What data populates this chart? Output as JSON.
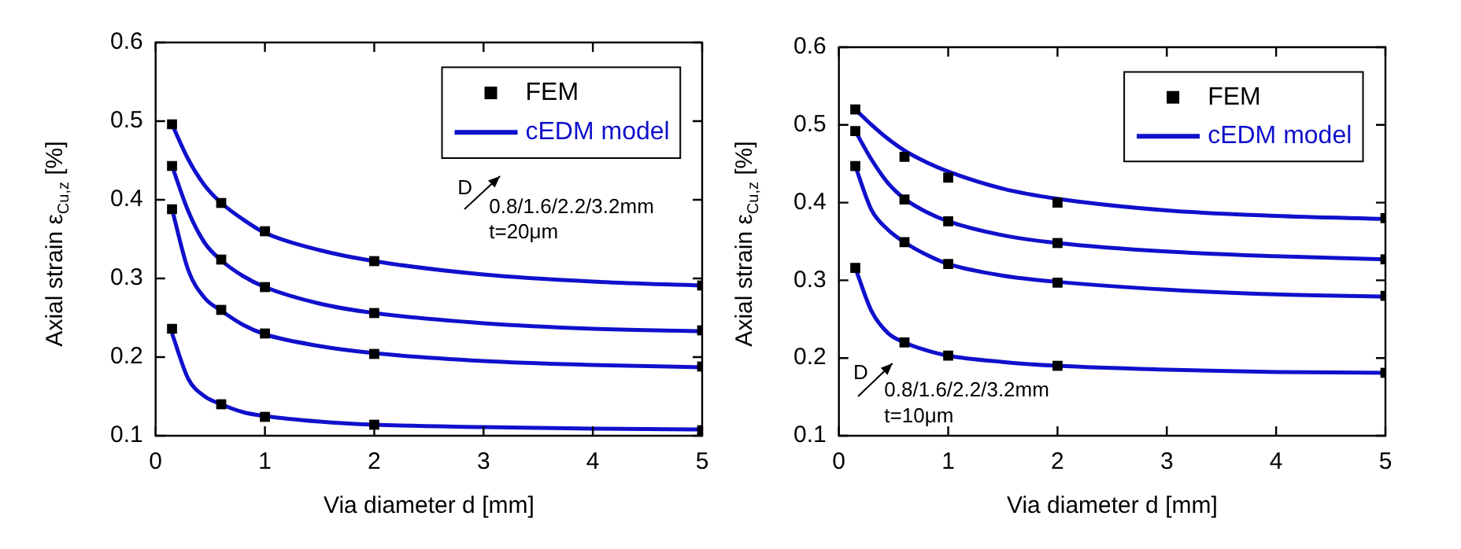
{
  "chart_data": [
    {
      "type": "scatter",
      "xlabel": "Via diameter d [mm]",
      "ylabel": "Axial strain ε$_{Cu,z}$ [%]",
      "xlim": [
        0,
        5
      ],
      "xticks": [
        0,
        1,
        2,
        3,
        4,
        5
      ],
      "ylim": [
        0.1,
        0.6
      ],
      "yticks": [
        0.1,
        0.2,
        0.3,
        0.4,
        0.5,
        0.6
      ],
      "grid": false,
      "legend": "top right",
      "annotations": [
        "D",
        "0.8/1.6/2.2/3.2mm",
        "t=20μm"
      ],
      "series": [
        {
          "name": "FEM",
          "marker": "square",
          "color": "#000000",
          "x": [
            0.15,
            0.6,
            1,
            2,
            5
          ],
          "values": [
            0.496,
            0.396,
            0.36,
            0.322,
            0.291
          ]
        },
        {
          "marker": "square",
          "color": "#000000",
          "x": [
            0.15,
            0.6,
            1,
            2,
            5
          ],
          "values": [
            0.443,
            0.324,
            0.289,
            0.256,
            0.234
          ]
        },
        {
          "marker": "square",
          "color": "#000000",
          "x": [
            0.15,
            0.6,
            1,
            2,
            5
          ],
          "values": [
            0.388,
            0.26,
            0.23,
            0.204,
            0.188
          ]
        },
        {
          "marker": "square",
          "color": "#000000",
          "x": [
            0.15,
            0.6,
            1,
            2,
            5
          ],
          "values": [
            0.236,
            0.14,
            0.124,
            0.114,
            0.107
          ]
        },
        {
          "type": "line",
          "name": "cEDM model",
          "marker": "none",
          "color": "#1010cc",
          "x": [
            0.15,
            0.3,
            0.45,
            0.6,
            0.8,
            1,
            1.5,
            2,
            3,
            4,
            5
          ],
          "values": [
            0.496,
            0.451,
            0.418,
            0.396,
            0.375,
            0.358,
            0.336,
            0.322,
            0.305,
            0.296,
            0.291
          ]
        },
        {
          "type": "line",
          "marker": "none",
          "color": "#1010cc",
          "x": [
            0.15,
            0.3,
            0.45,
            0.6,
            0.8,
            1,
            1.5,
            2,
            3,
            4,
            5
          ],
          "values": [
            0.443,
            0.385,
            0.345,
            0.323,
            0.303,
            0.289,
            0.268,
            0.256,
            0.243,
            0.236,
            0.233
          ]
        },
        {
          "type": "line",
          "marker": "none",
          "color": "#1010cc",
          "x": [
            0.15,
            0.3,
            0.45,
            0.6,
            0.8,
            1,
            1.5,
            2,
            3,
            4,
            5
          ],
          "values": [
            0.388,
            0.31,
            0.275,
            0.259,
            0.241,
            0.229,
            0.214,
            0.205,
            0.195,
            0.19,
            0.187
          ]
        },
        {
          "type": "line",
          "marker": "none",
          "color": "#1010cc",
          "x": [
            0.15,
            0.3,
            0.45,
            0.6,
            0.8,
            1,
            1.5,
            2,
            3,
            4,
            5
          ],
          "values": [
            0.23,
            0.172,
            0.15,
            0.14,
            0.13,
            0.125,
            0.118,
            0.114,
            0.111,
            0.109,
            0.108
          ]
        }
      ]
    },
    {
      "type": "scatter",
      "xlabel": "Via diameter d [mm]",
      "ylabel": "Axial strain ε$_{Cu,z}$ [%]",
      "xlim": [
        0,
        5
      ],
      "xticks": [
        0,
        1,
        2,
        3,
        4,
        5
      ],
      "ylim": [
        0.1,
        0.6
      ],
      "yticks": [
        0.1,
        0.2,
        0.3,
        0.4,
        0.5,
        0.6
      ],
      "grid": false,
      "legend": "top right",
      "annotations": [
        "D",
        "0.8/1.6/2.2/3.2mm",
        "t=10μm"
      ],
      "series": [
        {
          "name": "FEM",
          "marker": "square",
          "color": "#000000",
          "x": [
            0.15,
            0.6,
            1,
            2,
            5
          ],
          "values": [
            0.52,
            0.459,
            0.432,
            0.4,
            0.38
          ]
        },
        {
          "marker": "square",
          "color": "#000000",
          "x": [
            0.15,
            0.6,
            1,
            2,
            5
          ],
          "values": [
            0.492,
            0.404,
            0.376,
            0.348,
            0.327
          ]
        },
        {
          "marker": "square",
          "color": "#000000",
          "x": [
            0.15,
            0.6,
            1,
            2,
            5
          ],
          "values": [
            0.447,
            0.349,
            0.321,
            0.297,
            0.28
          ]
        },
        {
          "marker": "square",
          "color": "#000000",
          "x": [
            0.15,
            0.6,
            1,
            2,
            5
          ],
          "values": [
            0.316,
            0.22,
            0.203,
            0.19,
            0.181
          ]
        },
        {
          "type": "line",
          "name": "cEDM model",
          "marker": "none",
          "color": "#1010cc",
          "x": [
            0.15,
            0.3,
            0.45,
            0.6,
            0.8,
            1,
            1.5,
            2,
            3,
            4,
            5
          ],
          "values": [
            0.52,
            0.5,
            0.482,
            0.467,
            0.452,
            0.44,
            0.418,
            0.405,
            0.39,
            0.383,
            0.379
          ]
        },
        {
          "type": "line",
          "marker": "none",
          "color": "#1010cc",
          "x": [
            0.15,
            0.3,
            0.45,
            0.6,
            0.8,
            1,
            1.5,
            2,
            3,
            4,
            5
          ],
          "values": [
            0.492,
            0.455,
            0.425,
            0.405,
            0.388,
            0.376,
            0.358,
            0.348,
            0.337,
            0.331,
            0.327
          ]
        },
        {
          "type": "line",
          "marker": "none",
          "color": "#1010cc",
          "x": [
            0.15,
            0.3,
            0.45,
            0.6,
            0.8,
            1,
            1.5,
            2,
            3,
            4,
            5
          ],
          "values": [
            0.447,
            0.39,
            0.365,
            0.349,
            0.333,
            0.321,
            0.306,
            0.298,
            0.288,
            0.282,
            0.279
          ]
        },
        {
          "type": "line",
          "marker": "none",
          "color": "#1010cc",
          "x": [
            0.15,
            0.3,
            0.45,
            0.6,
            0.8,
            1,
            1.5,
            2,
            3,
            4,
            5
          ],
          "values": [
            0.316,
            0.26,
            0.232,
            0.22,
            0.21,
            0.203,
            0.195,
            0.19,
            0.185,
            0.182,
            0.181
          ]
        }
      ]
    }
  ]
}
